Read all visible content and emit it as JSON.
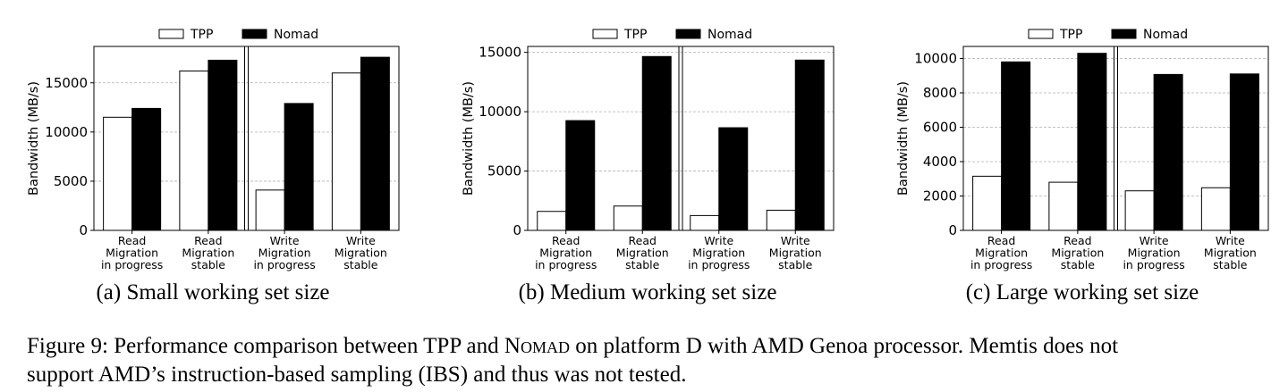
{
  "chart_data": [
    {
      "type": "bar",
      "subcaption": "(a) Small working set size",
      "ylabel": "Bandwidth (MB/s)",
      "categories": [
        [
          "Read",
          "Migration",
          "in progress"
        ],
        [
          "Read",
          "Migration",
          "stable"
        ],
        [
          "Write",
          "Migration",
          "in progress"
        ],
        [
          "Write",
          "Migration",
          "stable"
        ]
      ],
      "series": [
        {
          "name": "TPP",
          "color": "#ffffff",
          "values": [
            11500,
            16200,
            4100,
            16000
          ]
        },
        {
          "name": "Nomad",
          "color": "#000000",
          "values": [
            12400,
            17300,
            12900,
            17600
          ]
        }
      ],
      "ylim": [
        0,
        18700
      ],
      "yticks": [
        0,
        5000,
        10000,
        15000
      ],
      "ytick_labels": [
        "0",
        "5000",
        "10000",
        "15000"
      ],
      "legend": "top-center",
      "grid": true
    },
    {
      "type": "bar",
      "subcaption": "(b) Medium working set size",
      "ylabel": "Bandwidth (MB/s)",
      "categories": [
        [
          "Read",
          "Migration",
          "in progress"
        ],
        [
          "Read",
          "Migration",
          "stable"
        ],
        [
          "Write",
          "Migration",
          "in progress"
        ],
        [
          "Write",
          "Migration",
          "stable"
        ]
      ],
      "series": [
        {
          "name": "TPP",
          "color": "#ffffff",
          "values": [
            1600,
            2050,
            1250,
            1700
          ]
        },
        {
          "name": "Nomad",
          "color": "#000000",
          "values": [
            9250,
            14650,
            8650,
            14350
          ]
        }
      ],
      "ylim": [
        0,
        15500
      ],
      "yticks": [
        0,
        5000,
        10000,
        15000
      ],
      "ytick_labels": [
        "0",
        "5000",
        "10000",
        "15000"
      ],
      "legend": "top-center",
      "grid": true
    },
    {
      "type": "bar",
      "subcaption": "(c) Large working set size",
      "ylabel": "Bandwidth (MB/s)",
      "categories": [
        [
          "Read",
          "Migration",
          "in progress"
        ],
        [
          "Read",
          "Migration",
          "stable"
        ],
        [
          "Write",
          "Migration",
          "in progress"
        ],
        [
          "Write",
          "Migration",
          "stable"
        ]
      ],
      "series": [
        {
          "name": "TPP",
          "color": "#ffffff",
          "values": [
            3150,
            2800,
            2300,
            2480
          ]
        },
        {
          "name": "Nomad",
          "color": "#000000",
          "values": [
            9800,
            10300,
            9070,
            9100
          ]
        }
      ],
      "ylim": [
        0,
        10700
      ],
      "yticks": [
        0,
        2000,
        4000,
        6000,
        8000,
        10000
      ],
      "ytick_labels": [
        "0",
        "2000",
        "4000",
        "6000",
        "8000",
        "10000"
      ],
      "legend": "top-center",
      "grid": true
    }
  ],
  "caption": {
    "line1_a": "Figure 9: Performance comparison between TPP and ",
    "line1_b": "Nomad",
    "line1_c": " on platform D with AMD Genoa processor. Memtis does not",
    "line2": "support AMD’s instruction-based sampling (IBS) and thus was not tested."
  }
}
